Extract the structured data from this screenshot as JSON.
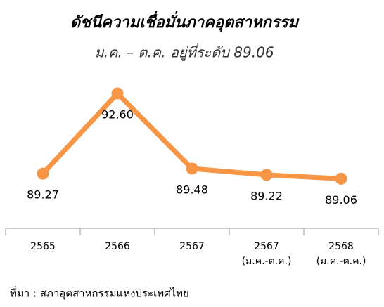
{
  "chart_data": {
    "type": "line",
    "title": "ดัชนีความเชื่อมั่นภาคอุตสาหกรรม",
    "subtitle": "ม.ค. – ต.ค. อยู่ที่ระดับ 89.06",
    "categories": [
      "2565",
      "2566",
      "2567",
      "2567",
      "2568"
    ],
    "category_notes": [
      null,
      null,
      null,
      "(ม.ค.-ต.ค.)",
      "(ม.ค.-ต.ค.)"
    ],
    "values": [
      89.27,
      92.6,
      89.48,
      89.22,
      89.06
    ],
    "value_labels": [
      "89.27",
      "92.60",
      "89.48",
      "89.22",
      "89.06"
    ],
    "color": "#f79646",
    "ylim": [
      87,
      94
    ],
    "source": "ที่มา : สภาอุตสาหกรรมแห่งประเทศไทย"
  }
}
